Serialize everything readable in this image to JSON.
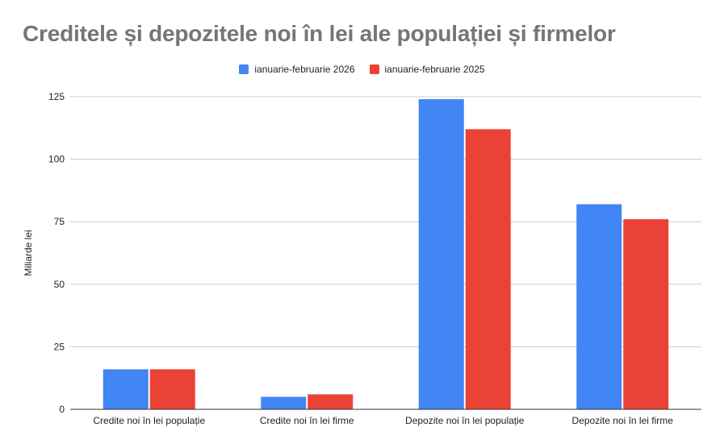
{
  "chart_data": {
    "type": "bar",
    "title": "Creditele și depozitele noi în lei ale populației și firmelor",
    "xlabel": "",
    "ylabel": "Miliarde lei",
    "categories": [
      "Credite noi în lei populație",
      "Credite noi în lei firme",
      "Depozite noi în lei populație",
      "Depozite noi în lei firme"
    ],
    "series": [
      {
        "name": "ianuarie-februarie 2026",
        "color": "#4285f4",
        "values": [
          16,
          5,
          124,
          82
        ]
      },
      {
        "name": "ianuarie-februarie 2025",
        "color": "#ea4335",
        "values": [
          16,
          6,
          112,
          76
        ]
      }
    ],
    "ylim": [
      0,
      125
    ],
    "yticks": [
      0,
      25,
      50,
      75,
      100,
      125
    ],
    "grid": true,
    "legend_position": "top"
  }
}
